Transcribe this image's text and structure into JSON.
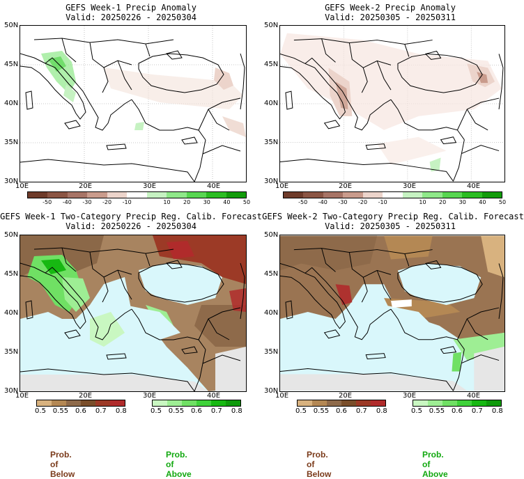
{
  "panels": [
    {
      "title": "GEFS Week-1 Precip Anomaly",
      "valid": "Valid: 20250226 - 20250304"
    },
    {
      "title": "GEFS Week-2 Precip Anomaly",
      "valid": "Valid: 20250305 - 20250311"
    },
    {
      "title": "GEFS Week-1 Two-Category Precip Reg. Calib. Forecast",
      "valid": "Valid: 20250226 - 20250304"
    },
    {
      "title": "GEFS Week-2 Two-Category Precip Reg. Calib. Forecast",
      "valid": "Valid: 20250305 - 20250311"
    }
  ],
  "lat_labels": [
    "50N",
    "45N",
    "40N",
    "35N",
    "30N"
  ],
  "lon_labels": [
    "10E",
    "20E",
    "30E",
    "40E"
  ],
  "anomaly_scale": {
    "ticks": [
      "-50",
      "-40",
      "-30",
      "-20",
      "-10",
      "10",
      "20",
      "30",
      "40",
      "50"
    ],
    "colors": [
      "#6e3b2a",
      "#8b5544",
      "#a77466",
      "#c99b8c",
      "#ecd4cb",
      "#ffffff",
      "#c6f2c2",
      "#8fe889",
      "#58d651",
      "#2bbd22",
      "#129b0a"
    ]
  },
  "below_scale": {
    "ticks": [
      "0.5",
      "0.55",
      "0.6",
      "0.7",
      "0.8"
    ],
    "colors": [
      "#d8b27f",
      "#b48854",
      "#8e6a4a",
      "#7a4e2a",
      "#9c3a26",
      "#b02b2b"
    ]
  },
  "above_scale": {
    "ticks": [
      "0.5",
      "0.55",
      "0.6",
      "0.7",
      "0.8"
    ],
    "colors": [
      "#c9f7c1",
      "#9eee94",
      "#70e064",
      "#3fd23a",
      "#17b812",
      "#0e9a0a"
    ]
  },
  "legend": {
    "below_label": "Prob. of Below",
    "above_label": "Prob. of Above",
    "below_color": "#7a3a1a",
    "above_color": "#11a80f"
  },
  "colors": {
    "sea": "#d9f7fb",
    "grey": "#e6e6e6"
  }
}
